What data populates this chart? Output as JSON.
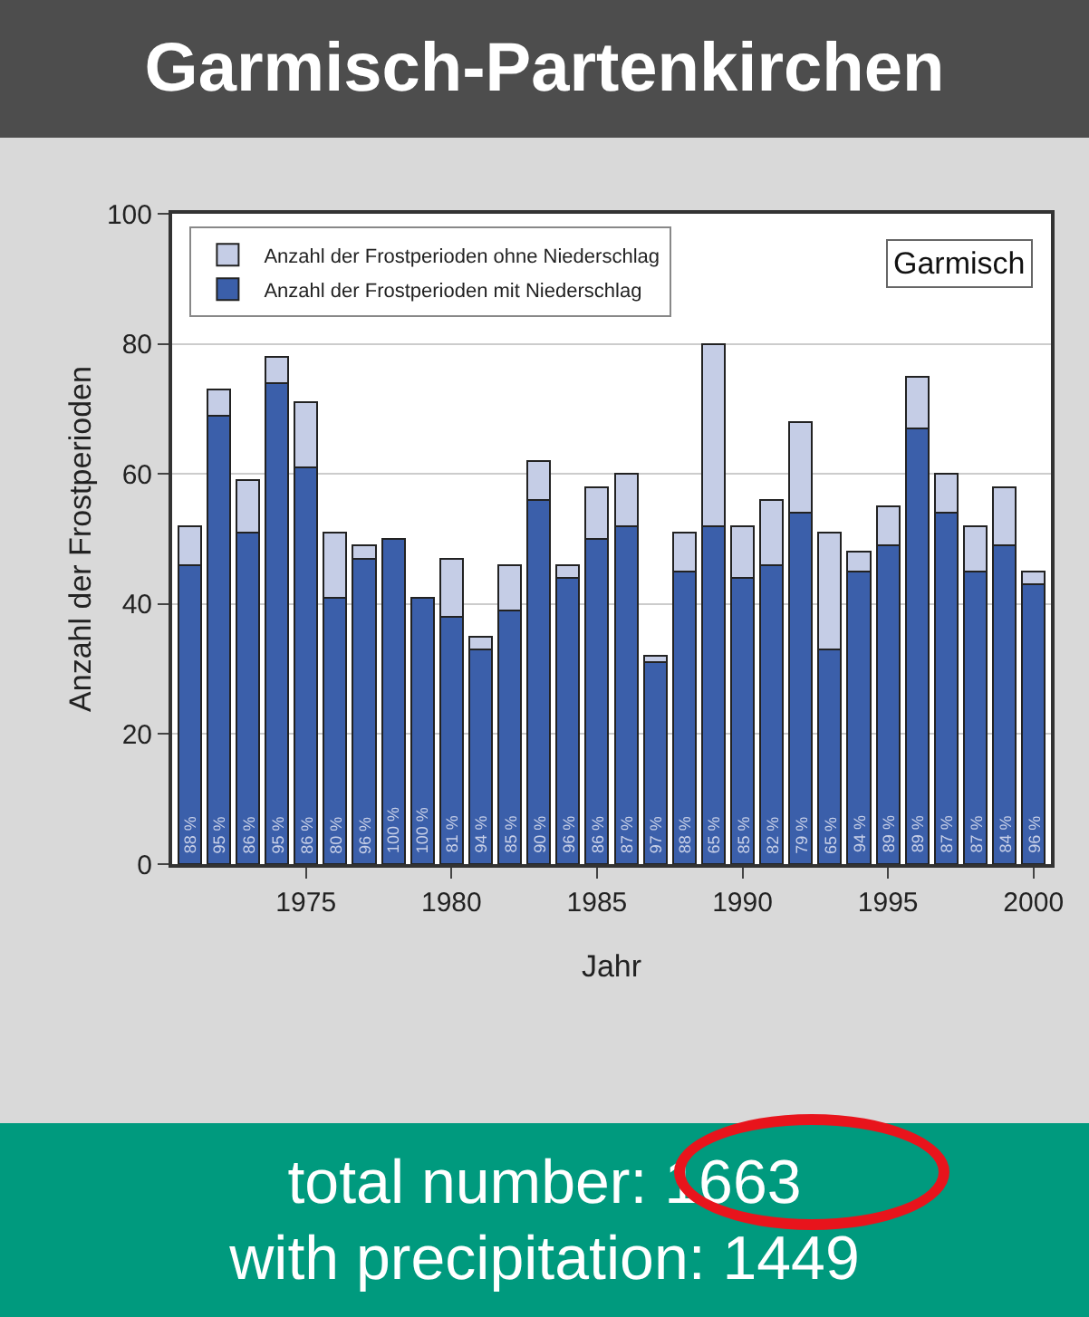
{
  "chart_data": {
    "type": "bar",
    "title": "Garmisch-Partenkirchen",
    "xlabel": "Jahr",
    "ylabel": "Anzahl der Frostperioden",
    "stacked": true,
    "x": [
      1971,
      1972,
      1973,
      1974,
      1975,
      1976,
      1977,
      1978,
      1979,
      1980,
      1981,
      1982,
      1983,
      1984,
      1985,
      1986,
      1987,
      1988,
      1989,
      1990,
      1991,
      1992,
      1993,
      1994,
      1995,
      1996,
      1997,
      1998,
      1999,
      2000
    ],
    "series": [
      {
        "name": "Anzahl der Frostperioden mit Niederschlag",
        "color": "#3b5faa",
        "values": [
          46,
          69,
          51,
          74,
          61,
          41,
          47,
          50,
          41,
          38,
          33,
          39,
          56,
          44,
          50,
          52,
          31,
          45,
          52,
          44,
          46,
          54,
          33,
          45,
          49,
          67,
          54,
          45,
          49,
          43
        ]
      },
      {
        "name": "Anzahl der Frostperioden ohne Niederschlag",
        "color": "#c5cde6",
        "values": [
          6,
          4,
          8,
          4,
          10,
          10,
          2,
          0,
          0,
          9,
          2,
          7,
          6,
          2,
          8,
          8,
          1,
          6,
          28,
          8,
          10,
          14,
          18,
          3,
          6,
          8,
          6,
          7,
          9,
          2
        ]
      }
    ],
    "xlim": [
      1970.4,
      2000.6
    ],
    "xticks": [
      1975,
      1980,
      1985,
      1990,
      1995,
      2000
    ],
    "ylim": [
      0,
      100
    ],
    "yticks": [
      0,
      20,
      40,
      60,
      80,
      100
    ],
    "grid": "y",
    "legend": "top left",
    "annotations": [
      "Garmisch",
      "total number: 1663",
      "with precipitation: 1449",
      {
        "text": "88 %",
        "x": 1971,
        "y": 0
      },
      {
        "text": "95 %",
        "x": 1972,
        "y": 0
      },
      {
        "text": "86 %",
        "x": 1973,
        "y": 0
      },
      {
        "text": "95 %",
        "x": 1974,
        "y": 0
      },
      {
        "text": "86 %",
        "x": 1975,
        "y": 0
      },
      {
        "text": "80 %",
        "x": 1976,
        "y": 0
      },
      {
        "text": "96 %",
        "x": 1977,
        "y": 0
      },
      {
        "text": "100 %",
        "x": 1978,
        "y": 0
      },
      {
        "text": "100 %",
        "x": 1979,
        "y": 0
      },
      {
        "text": "81 %",
        "x": 1980,
        "y": 0
      },
      {
        "text": "94 %",
        "x": 1981,
        "y": 0
      },
      {
        "text": "85 %",
        "x": 1982,
        "y": 0
      },
      {
        "text": "90 %",
        "x": 1983,
        "y": 0
      },
      {
        "text": "96 %",
        "x": 1984,
        "y": 0
      },
      {
        "text": "86 %",
        "x": 1985,
        "y": 0
      },
      {
        "text": "87 %",
        "x": 1986,
        "y": 0
      },
      {
        "text": "97 %",
        "x": 1987,
        "y": 0
      },
      {
        "text": "88 %",
        "x": 1988,
        "y": 0
      },
      {
        "text": "65 %",
        "x": 1989,
        "y": 0
      },
      {
        "text": "85 %",
        "x": 1990,
        "y": 0
      },
      {
        "text": "82 %",
        "x": 1991,
        "y": 0
      },
      {
        "text": "79 %",
        "x": 1992,
        "y": 0
      },
      {
        "text": "65 %",
        "x": 1993,
        "y": 0
      },
      {
        "text": "94 %",
        "x": 1994,
        "y": 0
      },
      {
        "text": "89 %",
        "x": 1995,
        "y": 0
      },
      {
        "text": "89 %",
        "x": 1996,
        "y": 0
      },
      {
        "text": "87 %",
        "x": 1997,
        "y": 0
      },
      {
        "text": "87 %",
        "x": 1998,
        "y": 0
      },
      {
        "text": "84 %",
        "x": 1999,
        "y": 0
      },
      {
        "text": "96 %",
        "x": 2000,
        "y": 0
      }
    ]
  }
}
